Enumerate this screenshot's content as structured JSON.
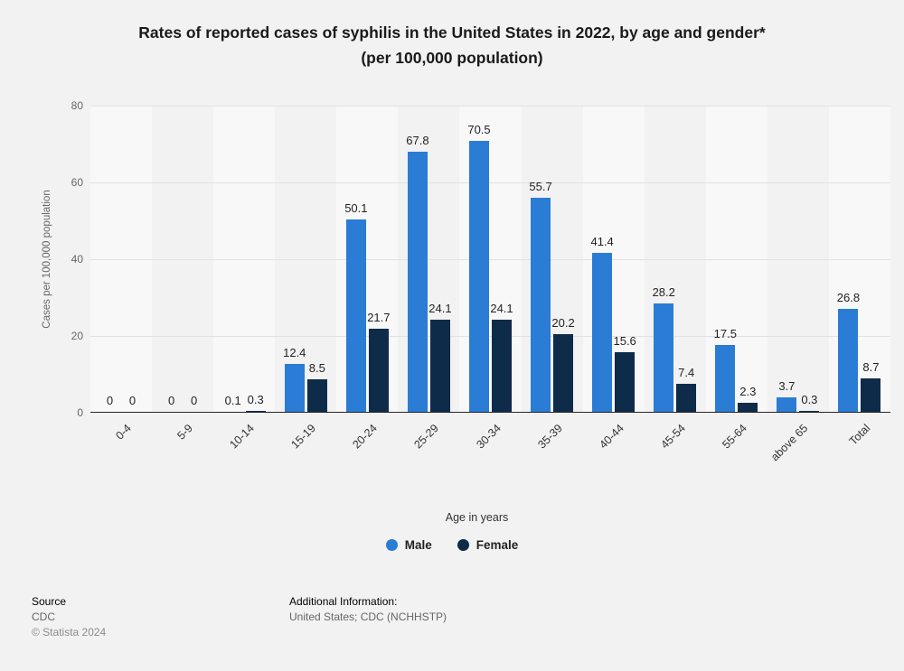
{
  "title": "Rates of reported cases of syphilis in the United States in 2022, by age and gender*\n(per 100,000 population)",
  "chart_data": {
    "type": "bar",
    "categories": [
      "0-4",
      "5-9",
      "10-14",
      "15-19",
      "20-24",
      "25-29",
      "30-34",
      "35-39",
      "40-44",
      "45-54",
      "55-64",
      "above 65",
      "Total"
    ],
    "series": [
      {
        "name": "Male",
        "color": "#2a7cd5",
        "values": [
          0,
          0,
          0.1,
          12.4,
          50.1,
          67.8,
          70.5,
          55.7,
          41.4,
          28.2,
          17.5,
          3.7,
          26.8
        ]
      },
      {
        "name": "Female",
        "color": "#0e2b4a",
        "values": [
          0,
          0,
          0.3,
          8.5,
          21.7,
          24.1,
          24.1,
          20.2,
          15.6,
          7.4,
          2.3,
          0.3,
          8.7
        ]
      }
    ],
    "title": "Rates of reported cases of syphilis in the United States in 2022, by age and gender* (per 100,000 population)",
    "xlabel": "Age in years",
    "ylabel": "Cases per 100,000 population",
    "ylim": [
      0,
      80
    ],
    "yticks": [
      0,
      20,
      40,
      60,
      80
    ],
    "grid": true,
    "legend_position": "bottom"
  },
  "footer": {
    "source_label": "Source",
    "source_value": "CDC",
    "copyright": "© Statista 2024",
    "additional_label": "Additional Information:",
    "additional_value": "United States; CDC (NCHHSTP)"
  }
}
